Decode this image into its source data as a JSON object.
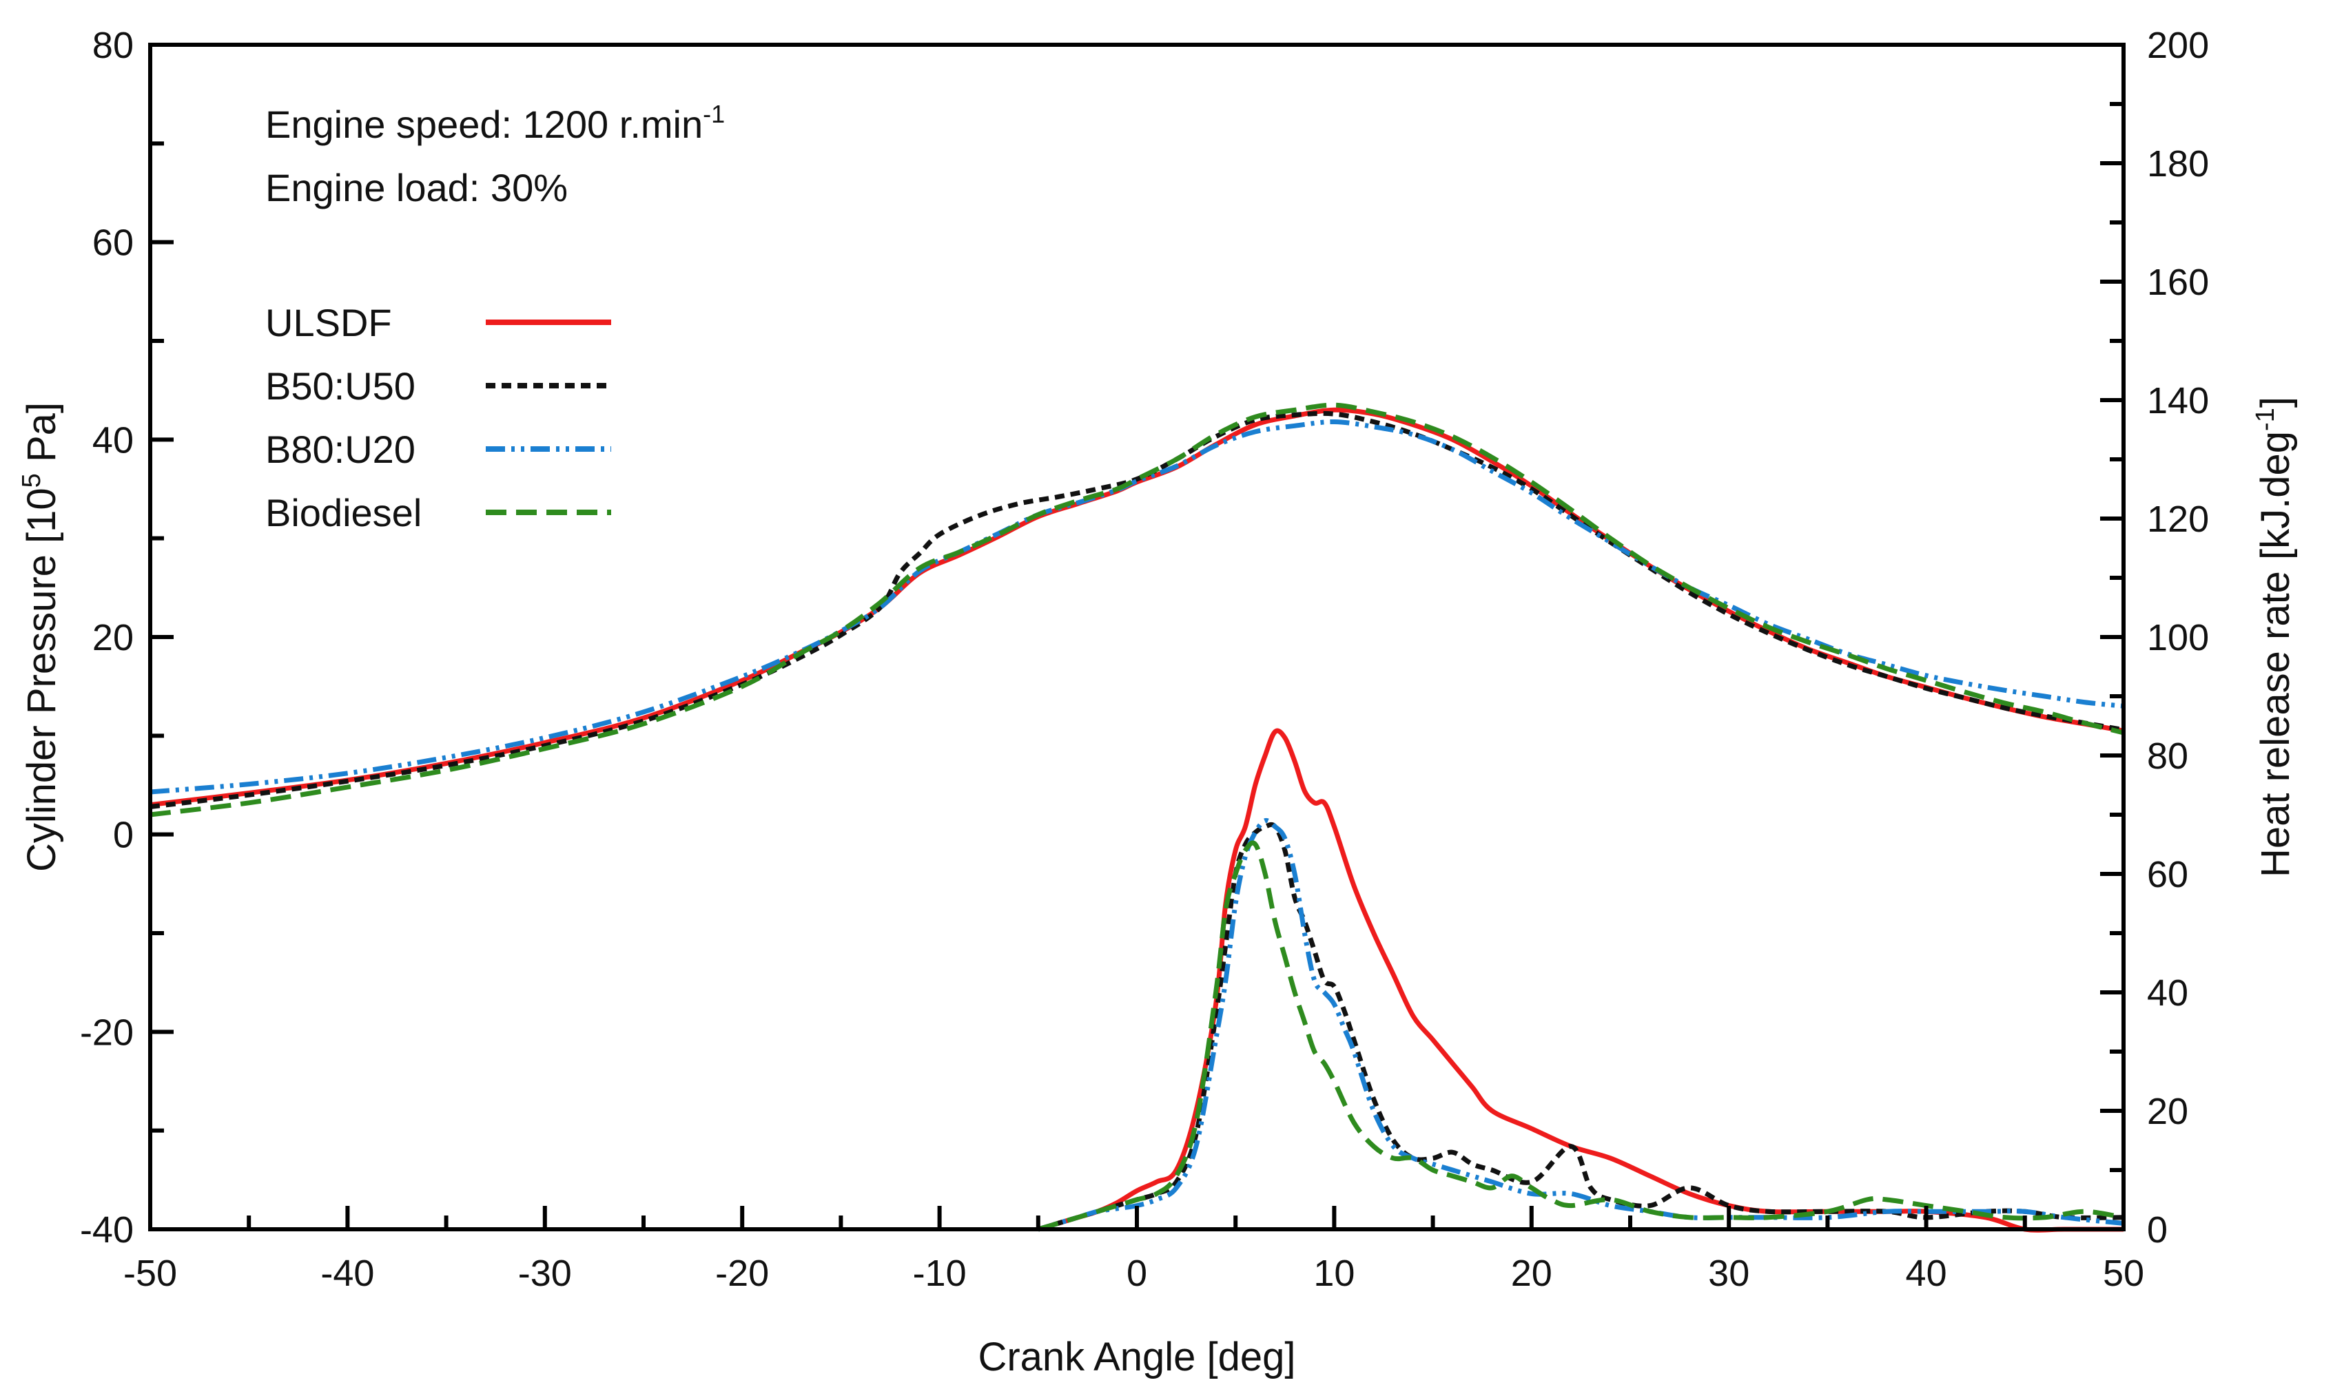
{
  "chart_data": {
    "type": "line",
    "xlabel": "Crank Angle [deg]",
    "ylabel": "Cylinder Pressure [10",
    "ylabel_sup": "5",
    "ylabel_end": " Pa]",
    "y2label": "Heat release rate [kJ.deg",
    "y2label_sup": "-1",
    "y2label_end": "]",
    "xlim": [
      -50,
      50
    ],
    "ylim": [
      -40,
      80
    ],
    "y2lim": [
      0,
      200
    ],
    "x_ticks": [
      "-50",
      "-40",
      "-30",
      "-20",
      "-10",
      "0",
      "10",
      "20",
      "30",
      "40",
      "50"
    ],
    "y_ticks": [
      "-40",
      "-20",
      "0",
      "20",
      "40",
      "60",
      "80"
    ],
    "y2_ticks": [
      "0",
      "20",
      "40",
      "60",
      "80",
      "100",
      "120",
      "140",
      "160",
      "180",
      "200"
    ],
    "grid": false,
    "legend_position": "top-left",
    "annotations": {
      "speed_text": "Engine speed: 1200 r.min",
      "speed_sup": "-1",
      "load_text": "Engine load: 30%"
    },
    "series": [
      {
        "name": "ULSDF",
        "color": "#ee1c1c",
        "dash": "solid",
        "pressure": {
          "x": [
            -50,
            -45,
            -40,
            -35,
            -30,
            -25,
            -20,
            -17,
            -15,
            -13,
            -11,
            -9,
            -7,
            -5,
            -3,
            -1,
            0,
            2,
            4,
            6,
            8,
            10,
            12,
            14,
            16,
            18,
            20,
            22,
            24,
            26,
            28,
            30,
            32,
            34,
            36,
            38,
            40,
            42,
            44,
            46,
            48,
            50
          ],
          "y": [
            3,
            4.2,
            5.5,
            7.2,
            9.3,
            11.8,
            15.6,
            18.5,
            20.5,
            23,
            26.5,
            28.3,
            30.2,
            32.2,
            33.5,
            34.8,
            35.7,
            37.2,
            39.5,
            41.5,
            42.4,
            43,
            42.6,
            41.5,
            40,
            37.8,
            35.3,
            32.5,
            29.8,
            27.2,
            24.8,
            22.6,
            20.6,
            18.8,
            17.4,
            16,
            14.9,
            13.8,
            12.8,
            11.9,
            11.2,
            10.5
          ]
        },
        "hrr": {
          "x": [
            -5,
            -4,
            -3,
            -2,
            -1,
            0,
            1,
            2,
            3,
            4,
            4.5,
            5,
            5.5,
            6,
            6.5,
            7,
            7.5,
            8,
            8.5,
            9,
            9.5,
            10,
            11,
            12,
            13,
            14,
            15,
            16,
            17,
            18,
            20,
            22,
            24,
            26,
            28,
            30,
            32,
            35,
            38,
            40,
            43,
            45,
            47,
            50
          ],
          "y": [
            0,
            1,
            2,
            3,
            4.5,
            6.5,
            8,
            10,
            20,
            38,
            55,
            64,
            68,
            75,
            80,
            84,
            83,
            79,
            74,
            72,
            72,
            68,
            58,
            50,
            43,
            36,
            32,
            28,
            24,
            20,
            17,
            14,
            12,
            9,
            6,
            4,
            3,
            3,
            3,
            3,
            2,
            0,
            0,
            0
          ]
        }
      },
      {
        "name": "B50:U50",
        "color": "#111111",
        "dash": "14,9",
        "pressure": {
          "x": [
            -50,
            -45,
            -40,
            -35,
            -30,
            -25,
            -20,
            -17,
            -15,
            -13,
            -12,
            -11,
            -10,
            -8,
            -6,
            -4,
            -2,
            0,
            2,
            4,
            6,
            8,
            10,
            12,
            14,
            16,
            18,
            20,
            22,
            24,
            26,
            28,
            30,
            32,
            34,
            36,
            38,
            40,
            42,
            44,
            46,
            48,
            50
          ],
          "y": [
            2.8,
            4,
            5.4,
            7,
            9,
            11.5,
            15.2,
            18,
            20.2,
            23,
            26.5,
            28.5,
            30.4,
            32.3,
            33.5,
            34.2,
            35,
            36,
            38,
            40.3,
            42,
            42.5,
            42.6,
            41.8,
            40.6,
            39,
            37.2,
            35,
            32.3,
            29.6,
            27,
            24.5,
            22.3,
            20.4,
            18.7,
            17.2,
            16,
            14.8,
            13.8,
            12.8,
            12,
            11.3,
            10.6
          ]
        },
        "hrr": {
          "x": [
            -5,
            -4,
            -3,
            -2,
            -1,
            0,
            1,
            2,
            3,
            4,
            4.5,
            5,
            5.5,
            6,
            6.5,
            7,
            7.5,
            8,
            8.5,
            9,
            9.5,
            10,
            10.5,
            11,
            12,
            13,
            14,
            15,
            16,
            17,
            18,
            20,
            22,
            23,
            24,
            26,
            28,
            30,
            32,
            35,
            38,
            40,
            43,
            45,
            47,
            50
          ],
          "y": [
            0,
            1,
            2,
            3,
            4,
            5,
            6,
            8,
            16,
            36,
            48,
            60,
            65,
            67,
            68,
            68,
            64,
            56,
            52,
            47,
            42,
            41,
            37,
            32,
            22,
            15,
            12,
            12,
            13,
            11,
            10,
            8,
            14,
            7,
            5,
            4,
            7,
            4,
            3,
            3,
            3,
            2,
            3,
            3,
            2,
            2
          ]
        }
      },
      {
        "name": "B80:U20",
        "color": "#1a7fd1",
        "dash": "28,9,5,9,5,9",
        "pressure": {
          "x": [
            -50,
            -45,
            -40,
            -35,
            -30,
            -25,
            -20,
            -17,
            -15,
            -13,
            -11,
            -9,
            -7,
            -5,
            -3,
            -1,
            0,
            2,
            4,
            6,
            8,
            10,
            12,
            14,
            16,
            18,
            20,
            22,
            24,
            26,
            28,
            30,
            32,
            34,
            36,
            38,
            40,
            42,
            44,
            46,
            48,
            50
          ],
          "y": [
            4.3,
            5.1,
            6.2,
            7.8,
            9.8,
            12.4,
            16,
            18.6,
            20.6,
            23,
            26.7,
            28.6,
            30.5,
            32.4,
            33.6,
            34.9,
            35.8,
            37.3,
            39.4,
            40.8,
            41.4,
            41.8,
            41.3,
            40.5,
            39,
            36.8,
            34.6,
            32,
            29.6,
            27.2,
            25,
            23.2,
            21.3,
            19.8,
            18.3,
            17.2,
            16.1,
            15.3,
            14.6,
            14,
            13.4,
            13
          ]
        },
        "hrr": {
          "x": [
            -5,
            -4,
            -3,
            -2,
            -1,
            0,
            1,
            2,
            3,
            4,
            4.5,
            5,
            5.5,
            6,
            6.5,
            7,
            7.5,
            8,
            8.5,
            9,
            9.5,
            10,
            10.5,
            11,
            12,
            13,
            14,
            15,
            16,
            17,
            18,
            20,
            22,
            24,
            26,
            28,
            30,
            32,
            35,
            38,
            40,
            43,
            45,
            47,
            50
          ],
          "y": [
            0,
            1,
            2,
            3,
            3.5,
            4,
            5,
            7,
            14,
            32,
            42,
            55,
            63,
            67,
            69,
            68,
            66,
            60,
            50,
            42,
            40,
            38,
            34,
            30,
            20,
            14,
            12,
            11,
            10,
            9,
            8,
            6,
            6,
            4,
            3,
            2,
            2,
            2,
            2,
            3,
            3,
            3,
            3,
            2,
            1
          ]
        }
      },
      {
        "name": "Biodiesel",
        "color": "#2e8b1e",
        "dash": "30,14",
        "pressure": {
          "x": [
            -50,
            -45,
            -40,
            -35,
            -30,
            -25,
            -20,
            -17,
            -15,
            -13,
            -11,
            -9,
            -7,
            -5,
            -3,
            -1,
            0,
            2,
            4,
            6,
            8,
            10,
            12,
            14,
            16,
            18,
            20,
            22,
            24,
            26,
            28,
            30,
            32,
            34,
            36,
            38,
            40,
            42,
            44,
            46,
            48,
            50
          ],
          "y": [
            2,
            3.2,
            4.8,
            6.5,
            8.7,
            11.2,
            15,
            18.4,
            20.6,
            23.5,
            27,
            28.6,
            30.4,
            32.4,
            33.8,
            35,
            36,
            38,
            40.5,
            42.3,
            43,
            43.5,
            42.8,
            41.8,
            40.3,
            38.2,
            35.7,
            32.9,
            30,
            27.3,
            25,
            22.9,
            21,
            19.5,
            18.2,
            16.8,
            15.6,
            14.4,
            13.3,
            12.4,
            11.3,
            10.3
          ]
        },
        "hrr": {
          "x": [
            -5,
            -4,
            -3,
            -2,
            -1,
            0,
            1,
            2,
            3,
            4,
            4.5,
            5,
            5.5,
            6,
            6.5,
            7,
            7.5,
            8,
            8.5,
            9,
            9.5,
            10,
            11,
            12,
            13,
            14,
            15,
            16,
            17,
            18,
            19,
            20,
            21,
            22,
            24,
            26,
            28,
            30,
            32,
            35,
            37,
            38,
            40,
            42,
            44,
            46,
            48,
            50
          ],
          "y": [
            0,
            1,
            2,
            3,
            4,
            5,
            6,
            9,
            18,
            40,
            54,
            60,
            64,
            65,
            60,
            52,
            46,
            40,
            35,
            30,
            28,
            25,
            18,
            14,
            12,
            12,
            10,
            9,
            8,
            7,
            9,
            7,
            5,
            4,
            5,
            3,
            2,
            2,
            2,
            3,
            5,
            5,
            4,
            3,
            2,
            2,
            3,
            2
          ]
        }
      }
    ]
  }
}
